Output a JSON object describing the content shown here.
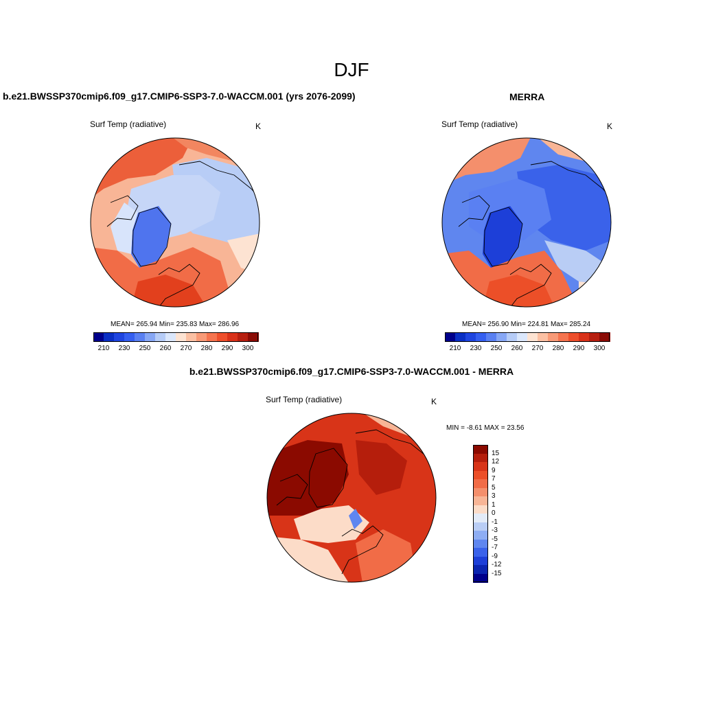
{
  "figure": {
    "season": "DJF",
    "field": "Surf Temp (radiative)",
    "units": "K"
  },
  "panels": {
    "model": {
      "title": "b.e21.BWSSP370cmip6.f09_g17.CMIP6-SSP3-7.0-WACCM.001 (yrs 2076-2099)",
      "subtitle": "Surf Temp (radiative)",
      "units": "K",
      "stats": "MEAN= 265.94  Min= 235.83  Max= 286.96"
    },
    "obs": {
      "title": "MERRA",
      "subtitle": "Surf Temp (radiative)",
      "units": "K",
      "stats": "MEAN= 256.90  Min= 224.81  Max= 285.24"
    },
    "diff": {
      "title": "b.e21.BWSSP370cmip6.f09_g17.CMIP6-SSP3-7.0-WACCM.001 - MERRA",
      "subtitle": "Surf Temp (radiative)",
      "units": "K",
      "stats": "MIN =  -8.61 MAX =  23.56"
    }
  },
  "colorbars": {
    "absolute": {
      "labels": [
        "210",
        "230",
        "250",
        "260",
        "270",
        "280",
        "290",
        "300"
      ],
      "colors": [
        "#00008b",
        "#0a2fc4",
        "#1f45e0",
        "#355ff0",
        "#5a80f2",
        "#87a7f5",
        "#b6ccf7",
        "#dbe7fb",
        "#fde3d2",
        "#fbc0a3",
        "#f89a77",
        "#f5744f",
        "#ee4f2c",
        "#d9321a",
        "#b71f10",
        "#8b0b05"
      ]
    },
    "difference": {
      "labels": [
        "15",
        "12",
        "9",
        "7",
        "5",
        "3",
        "1",
        "0",
        "-1",
        "-3",
        "-5",
        "-7",
        "-9",
        "-12",
        "-15"
      ],
      "colors": [
        "#8b0a00",
        "#b51e0c",
        "#d83418",
        "#ec4f28",
        "#f16c47",
        "#f48f6c",
        "#f8b596",
        "#fcdcc8",
        "#e3ebf8",
        "#b9cdf5",
        "#8eadf3",
        "#5f86ef",
        "#3a62ea",
        "#1d3fd8",
        "#0b25b0",
        "#00008b"
      ]
    }
  },
  "chart_data": [
    {
      "type": "heatmap",
      "title": "b.e21.BWSSP370cmip6.f09_g17.CMIP6-SSP3-7.0-WACCM.001 (yrs 2076-2099)",
      "variable": "Surf Temp (radiative)",
      "units": "K",
      "projection": "north polar stereographic",
      "mean": 265.94,
      "min": 235.83,
      "max": 286.96,
      "contour_levels": [
        210,
        220,
        230,
        240,
        250,
        255,
        260,
        265,
        270,
        275,
        280,
        285,
        290,
        295,
        300
      ]
    },
    {
      "type": "heatmap",
      "title": "MERRA",
      "variable": "Surf Temp (radiative)",
      "units": "K",
      "projection": "north polar stereographic",
      "mean": 256.9,
      "min": 224.81,
      "max": 285.24,
      "contour_levels": [
        210,
        220,
        230,
        240,
        250,
        255,
        260,
        265,
        270,
        275,
        280,
        285,
        290,
        295,
        300
      ]
    },
    {
      "type": "heatmap",
      "title": "b.e21.BWSSP370cmip6.f09_g17.CMIP6-SSP3-7.0-WACCM.001 - MERRA",
      "variable": "Surf Temp (radiative)",
      "units": "K",
      "projection": "north polar stereographic",
      "min": -8.61,
      "max": 23.56,
      "contour_levels": [
        -15,
        -12,
        -9,
        -7,
        -5,
        -3,
        -1,
        0,
        1,
        3,
        5,
        7,
        9,
        12,
        15
      ]
    }
  ]
}
